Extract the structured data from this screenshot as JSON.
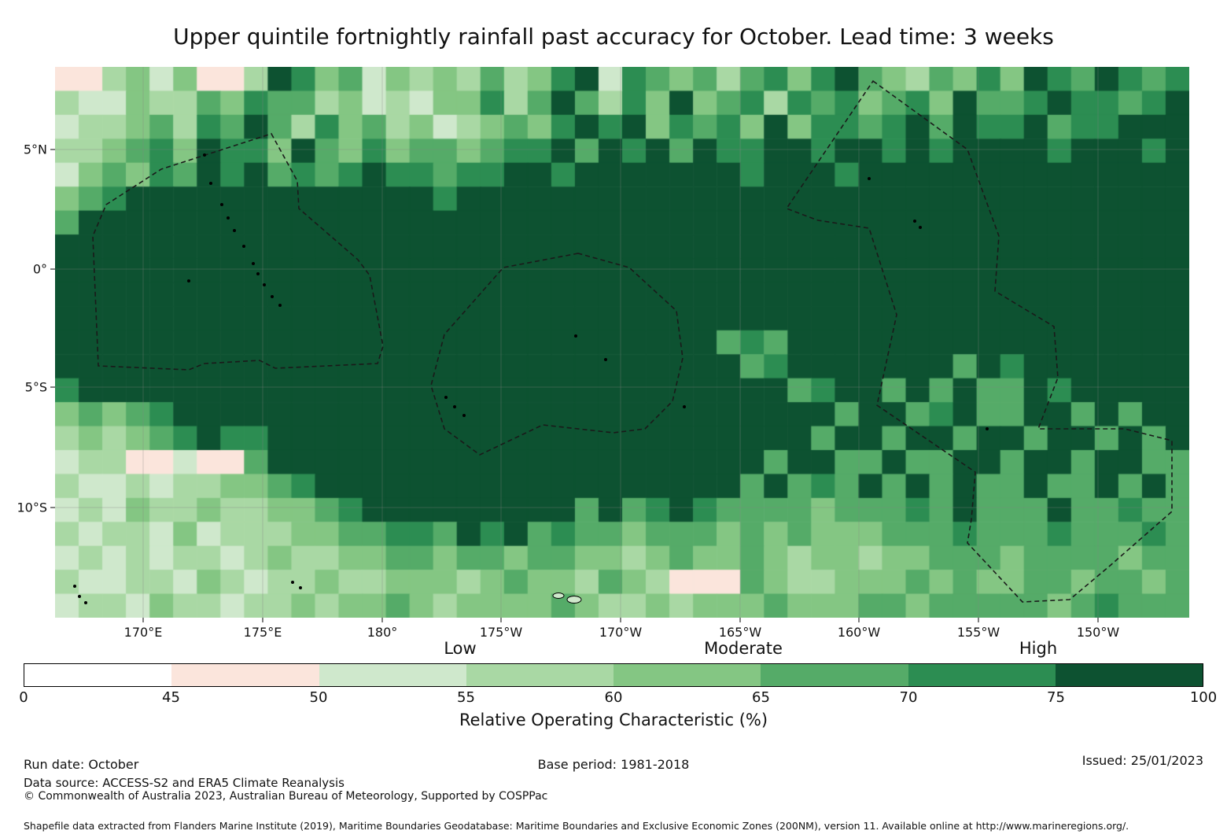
{
  "title": "Upper quintile fortnightly rainfall past accuracy for October. Lead time: 3 weeks",
  "legend": {
    "skill_labels": [
      "Low",
      "Moderate",
      "High"
    ],
    "axis_label": "Relative Operating Characteristic (%)"
  },
  "footer": {
    "run_date": "Run date: October",
    "base_period": "Base period: 1981-2018",
    "issued": "Issued: 25/01/2023",
    "data_source": "Data source: ACCESS-S2 and ERA5 Climate Reanalysis",
    "copyright": "© Commonwealth of Australia 2023, Australian Bureau of Meteorology, Supported by COSPPac",
    "shapefile_note": "Shapefile data extracted from Flanders Marine Institute (2019), Maritime Boundaries Geodatabase: Maritime Boundaries and Exclusive Economic Zones (200NM), version 11. Available online at http://www.marineregions.org/."
  },
  "chart_data": {
    "type": "heatmap",
    "title": "Upper quintile fortnightly rainfall past accuracy for October. Lead time: 3 weeks",
    "colorbar_label": "Relative Operating Characteristic (%)",
    "colorbar_tick_values": [
      0,
      45,
      50,
      55,
      60,
      65,
      70,
      75,
      100
    ],
    "bin_colors": [
      "#ffffff",
      "#fbe5dc",
      "#cfe8cc",
      "#a9d8a4",
      "#84c683",
      "#55ab68",
      "#2c8d52",
      "#0d5231"
    ],
    "lon_ticks": [
      "170°E",
      "175°E",
      "180°",
      "175°W",
      "170°W",
      "165°W",
      "160°W",
      "155°W",
      "150°W"
    ],
    "lat_ticks": [
      "5°N",
      "0°",
      "5°S",
      "10°S"
    ],
    "cell_encoding": "Each row is six 8-character groups (48 one-degree cells per row, 23 rows, ~8.5N to ~14.5S, ~166E to ~146W). Digit i = ROC bin between colorbar_tick_values[i] and colorbar_tick_values[i+1].",
    "grid_rows": [
      [
        "11342411",
        "37645243",
        "43534672",
        "65453564",
        "67543546",
        "47657656"
      ],
      [
        "32243354",
        "65534232",
        "44635753",
        "64745636",
        "56456475",
        "56766567"
      ],
      [
        "23345365",
        "75364534",
        "23454676",
        "74656474",
        "66567576",
        "67566777"
      ],
      [
        "33456476",
        "64754645",
        "54566757",
        "67576677",
        "67767677",
        "77677767"
      ],
      [
        "24546576",
        "75656766",
        "56677677",
        "77777677",
        "76777777",
        "77777777"
      ],
      [
        "45677777",
        "77777777",
        "67777777",
        "77777777",
        "77777777",
        "77777777"
      ],
      [
        "57777777",
        "77777777",
        "77777777",
        "77777777",
        "77777777",
        "77777777"
      ],
      [
        "77777777",
        "77777777",
        "77777777",
        "77777777",
        "77777777",
        "77777777"
      ],
      [
        "77777777",
        "77777777",
        "77777777",
        "77777777",
        "77777777",
        "77777777"
      ],
      [
        "77777777",
        "77777777",
        "77777777",
        "77777777",
        "77777777",
        "77777777"
      ],
      [
        "77777777",
        "77777777",
        "77777777",
        "77777777",
        "77777777",
        "77777777"
      ],
      [
        "77777777",
        "77777777",
        "77777777",
        "77775657",
        "77777777",
        "77777777"
      ],
      [
        "77777777",
        "77777777",
        "77777777",
        "77777567",
        "77777757",
        "67777777"
      ],
      [
        "67777777",
        "77777777",
        "77777777",
        "77777775",
        "67757575",
        "57677777"
      ],
      [
        "45456777",
        "77777777",
        "77777777",
        "77777777",
        "75775675",
        "57757577"
      ],
      [
        "34345676",
        "67777777",
        "77777777",
        "77777777",
        "57757757",
        "75775757"
      ],
      [
        "23311211",
        "57777777",
        "77777777",
        "77777757",
        "75575577",
        "57757755"
      ],
      [
        "32232334",
        "45677777",
        "77777777",
        "77777575",
        "65757575",
        "57557575"
      ],
      [
        "23243343",
        "34456777",
        "77777757",
        "56765555",
        "45556575",
        "55755655"
      ],
      [
        "32332423",
        "33445566",
        "57675655",
        "45554545",
        "44455565",
        "55655565"
      ],
      [
        "23232332",
        "34334455",
        "45545544",
        "34544543",
        "44344555",
        "45555455"
      ],
      [
        "32233243",
        "23343344",
        "43454435",
        "43111543",
        "34445454",
        "45545545"
      ],
      [
        "23324332",
        "33434454",
        "34444543",
        "34344454",
        "44554555",
        "55456555"
      ]
    ]
  }
}
